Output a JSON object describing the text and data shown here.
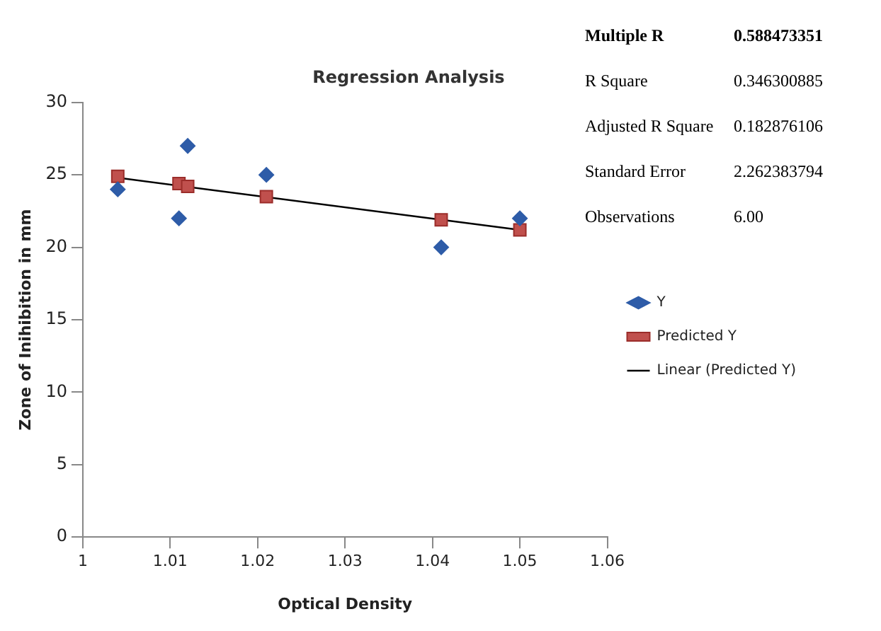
{
  "chart_data": {
    "type": "scatter",
    "title": "Regression Analysis",
    "xlabel": "Optical Density",
    "ylabel": "Zone of Inihibition in mm",
    "xlim": [
      1,
      1.06
    ],
    "xticks": [
      1,
      1.01,
      1.02,
      1.03,
      1.04,
      1.05,
      1.06
    ],
    "ylim": [
      0,
      30
    ],
    "yticks": [
      0,
      5,
      10,
      15,
      20,
      25,
      30
    ],
    "grid": false,
    "legend": "right",
    "series": [
      {
        "name": "Y",
        "type": "scatter",
        "marker": "diamond",
        "color": "#2e5ca8",
        "x": [
          1.004,
          1.011,
          1.012,
          1.021,
          1.041,
          1.05
        ],
        "values": [
          24,
          22,
          27,
          25,
          20,
          22
        ]
      },
      {
        "name": "Predicted Y",
        "type": "scatter",
        "marker": "square",
        "color": "#c0504d",
        "x": [
          1.004,
          1.011,
          1.012,
          1.021,
          1.041,
          1.05
        ],
        "values": [
          24.9,
          24.4,
          24.2,
          23.5,
          21.9,
          21.2
        ]
      },
      {
        "name": "Linear (Predicted Y)",
        "type": "line",
        "marker": "none",
        "color": "#000000",
        "x": [
          1.004,
          1.05
        ],
        "values": [
          24.8,
          21.2
        ]
      }
    ],
    "annotations": [
      "Multiple R",
      "0.588473351",
      "R Square",
      "0.346300885",
      "Adjusted R Square",
      "0.182876106",
      "Standard Error",
      "2.262383794",
      "Observations",
      "6.00"
    ]
  }
}
